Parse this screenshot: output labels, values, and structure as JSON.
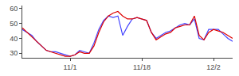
{
  "chart_data": {
    "type": "line",
    "categories": [
      null,
      null,
      null,
      null,
      null,
      null,
      null,
      null,
      null,
      null,
      "11/1",
      null,
      null,
      null,
      null,
      null,
      null,
      null,
      null,
      null,
      null,
      null,
      null,
      null,
      null,
      "11/18",
      null,
      null,
      null,
      null,
      null,
      null,
      null,
      null,
      null,
      null,
      null,
      null,
      null,
      null,
      "12/2",
      null,
      null,
      null,
      null
    ],
    "series": [
      {
        "color": "#4444ff",
        "values": [
          46,
          44,
          42,
          38,
          35,
          32,
          31,
          31,
          30,
          29,
          28,
          29,
          32,
          31,
          30,
          37,
          46,
          52,
          55,
          54,
          55,
          42,
          48,
          53,
          54,
          53,
          52,
          44,
          40,
          42,
          44,
          45,
          47,
          49,
          50,
          49,
          53,
          40,
          39,
          46,
          46,
          46,
          43,
          40,
          38
        ]
      },
      {
        "color": "#dd0000",
        "values": [
          47,
          44,
          41,
          38,
          35,
          32,
          31,
          30,
          29,
          28,
          28,
          29,
          31,
          30,
          30,
          35,
          44,
          51,
          55,
          57,
          58,
          55,
          53,
          53,
          54,
          53,
          52,
          44,
          39,
          41,
          43,
          44,
          47,
          48,
          49,
          49,
          55,
          42,
          39,
          44,
          46,
          45,
          44,
          42,
          40
        ]
      }
    ],
    "ylim": [
      27,
      62
    ],
    "yticks": [
      30,
      40,
      50,
      60
    ],
    "grid": false
  }
}
